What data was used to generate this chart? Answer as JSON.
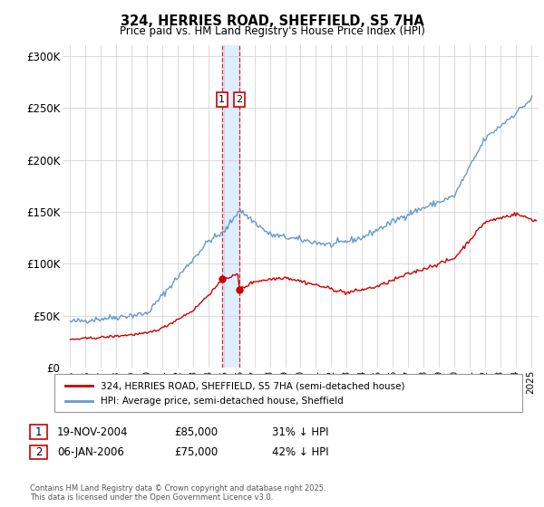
{
  "title": "324, HERRIES ROAD, SHEFFIELD, S5 7HA",
  "subtitle": "Price paid vs. HM Land Registry's House Price Index (HPI)",
  "legend_line1": "324, HERRIES ROAD, SHEFFIELD, S5 7HA (semi-detached house)",
  "legend_line2": "HPI: Average price, semi-detached house, Sheffield",
  "transaction1_date": "19-NOV-2004",
  "transaction1_price": "£85,000",
  "transaction1_hpi": "31% ↓ HPI",
  "transaction1_date_num": 2004.88,
  "transaction1_price_val": 85000,
  "transaction2_date": "06-JAN-2006",
  "transaction2_price": "£75,000",
  "transaction2_hpi": "42% ↓ HPI",
  "transaction2_date_num": 2006.02,
  "transaction2_price_val": 75000,
  "vline_color": "#dd0000",
  "house_color": "#cc0000",
  "hpi_color": "#6699cc",
  "shade_color": "#ddeeff",
  "ylim": [
    0,
    310000
  ],
  "yticks": [
    0,
    50000,
    100000,
    150000,
    200000,
    250000,
    300000
  ],
  "ytick_labels": [
    "£0",
    "£50K",
    "£100K",
    "£150K",
    "£200K",
    "£250K",
    "£300K"
  ],
  "xlim_start": 1994.5,
  "xlim_end": 2025.5,
  "footer": "Contains HM Land Registry data © Crown copyright and database right 2025.\nThis data is licensed under the Open Government Licence v3.0.",
  "background_color": "#ffffff",
  "grid_color": "#cccccc"
}
